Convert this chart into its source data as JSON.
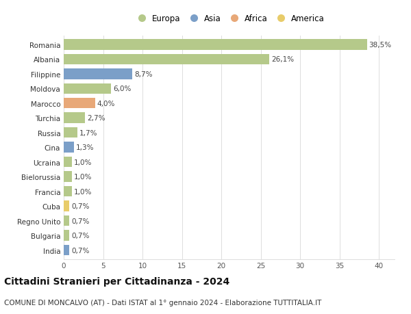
{
  "countries": [
    "Romania",
    "Albania",
    "Filippine",
    "Moldova",
    "Marocco",
    "Turchia",
    "Russia",
    "Cina",
    "Ucraina",
    "Bielorussia",
    "Francia",
    "Cuba",
    "Regno Unito",
    "Bulgaria",
    "India"
  ],
  "values": [
    38.5,
    26.1,
    8.7,
    6.0,
    4.0,
    2.7,
    1.7,
    1.3,
    1.0,
    1.0,
    1.0,
    0.7,
    0.7,
    0.7,
    0.7
  ],
  "labels": [
    "38,5%",
    "26,1%",
    "8,7%",
    "6,0%",
    "4,0%",
    "2,7%",
    "1,7%",
    "1,3%",
    "1,0%",
    "1,0%",
    "1,0%",
    "0,7%",
    "0,7%",
    "0,7%",
    "0,7%"
  ],
  "continents": [
    "Europa",
    "Europa",
    "Asia",
    "Europa",
    "Africa",
    "Europa",
    "Europa",
    "Asia",
    "Europa",
    "Europa",
    "Europa",
    "America",
    "Europa",
    "Europa",
    "Asia"
  ],
  "continent_colors": {
    "Europa": "#b5c98a",
    "Asia": "#7b9fc8",
    "Africa": "#e8a878",
    "America": "#e8cc6a"
  },
  "legend_order": [
    "Europa",
    "Asia",
    "Africa",
    "America"
  ],
  "title": "Cittadini Stranieri per Cittadinanza - 2024",
  "subtitle": "COMUNE DI MONCALVO (AT) - Dati ISTAT al 1° gennaio 2024 - Elaborazione TUTTITALIA.IT",
  "xlim": [
    0,
    42
  ],
  "xticks": [
    0,
    5,
    10,
    15,
    20,
    25,
    30,
    35,
    40
  ],
  "background_color": "#ffffff",
  "grid_color": "#dddddd",
  "bar_height": 0.72,
  "title_fontsize": 10,
  "subtitle_fontsize": 7.5,
  "label_fontsize": 7.5,
  "tick_fontsize": 7.5,
  "legend_fontsize": 8.5
}
